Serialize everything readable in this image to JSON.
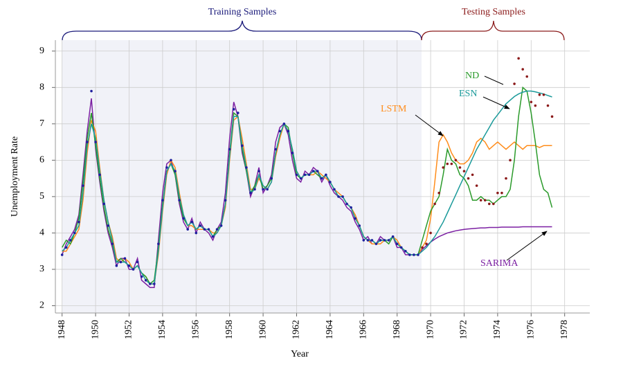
{
  "chart_data": {
    "type": "line",
    "x_label": "Year",
    "y_label": "Unemployment Rate",
    "annotations": [
      "Training Samples",
      "Testing Samples"
    ],
    "xlim": [
      1947.6,
      1979.5
    ],
    "ylim": [
      1.8,
      9.3
    ],
    "xticks": [
      1948,
      1950,
      1952,
      1954,
      1956,
      1958,
      1960,
      1962,
      1964,
      1966,
      1968,
      1970,
      1972,
      1974,
      1976,
      1978
    ],
    "yticks": [
      2,
      3,
      4,
      5,
      6,
      7,
      8,
      9
    ],
    "grid": true,
    "x": [
      1948,
      1948.25,
      1948.5,
      1948.75,
      1949,
      1949.25,
      1949.5,
      1949.75,
      1950,
      1950.25,
      1950.5,
      1950.75,
      1951,
      1951.25,
      1951.5,
      1951.75,
      1952,
      1952.25,
      1952.5,
      1952.75,
      1953,
      1953.25,
      1953.5,
      1953.75,
      1954,
      1954.25,
      1954.5,
      1954.75,
      1955,
      1955.25,
      1955.5,
      1955.75,
      1956,
      1956.25,
      1956.5,
      1956.75,
      1957,
      1957.25,
      1957.5,
      1957.75,
      1958,
      1958.25,
      1958.5,
      1958.75,
      1959,
      1959.25,
      1959.5,
      1959.75,
      1960,
      1960.25,
      1960.5,
      1960.75,
      1961,
      1961.25,
      1961.5,
      1961.75,
      1962,
      1962.25,
      1962.5,
      1962.75,
      1963,
      1963.25,
      1963.5,
      1963.75,
      1964,
      1964.25,
      1964.5,
      1964.75,
      1965,
      1965.25,
      1965.5,
      1965.75,
      1966,
      1966.25,
      1966.5,
      1966.75,
      1967,
      1967.25,
      1967.5,
      1967.75,
      1968,
      1968.25,
      1968.5,
      1968.75,
      1969,
      1969.25,
      1969.5,
      1969.75,
      1970,
      1970.25,
      1970.5,
      1970.75,
      1971,
      1971.25,
      1971.5,
      1971.75,
      1972,
      1972.25,
      1972.5,
      1972.75,
      1973,
      1973.25,
      1973.5,
      1973.75,
      1974,
      1974.25,
      1974.5,
      1974.75,
      1975,
      1975.25,
      1975.5,
      1975.75,
      1976,
      1976.25,
      1976.5,
      1976.75,
      1977,
      1977.25
    ],
    "series": [
      {
        "color": "#1f1f9e",
        "mode": "markers",
        "values": [
          3.4,
          3.6,
          3.8,
          4.0,
          4.3,
          5.3,
          6.5,
          7.9,
          6.5,
          5.6,
          4.8,
          4.2,
          3.7,
          3.1,
          3.2,
          3.3,
          3.1,
          3.0,
          3.2,
          2.8,
          2.7,
          2.6,
          2.6,
          3.7,
          4.9,
          5.8,
          6.0,
          5.7,
          4.9,
          4.4,
          4.1,
          4.3,
          4.0,
          4.2,
          4.1,
          4.1,
          3.9,
          4.1,
          4.2,
          4.9,
          6.3,
          7.4,
          7.3,
          6.4,
          5.8,
          5.1,
          5.2,
          5.7,
          5.2,
          5.2,
          5.5,
          6.3,
          6.8,
          7.0,
          6.8,
          6.2,
          5.6,
          5.5,
          5.6,
          5.6,
          5.7,
          5.7,
          5.5,
          5.6,
          5.4,
          5.2,
          5.0,
          5.0,
          4.8,
          4.7,
          4.4,
          4.2,
          3.8,
          3.8,
          3.8,
          3.7,
          3.8,
          3.8,
          3.8,
          3.9,
          3.7,
          3.6,
          3.5,
          3.4,
          3.4,
          3.4,
          null,
          null,
          null,
          null,
          null,
          null,
          null,
          null,
          null,
          null,
          null,
          null,
          null,
          null,
          null,
          null,
          null,
          null,
          null,
          null,
          null,
          null,
          null,
          null,
          null,
          null,
          null,
          null,
          null,
          null,
          null,
          null
        ]
      },
      {
        "color": "#8b1a1a",
        "mode": "markers",
        "values": [
          null,
          null,
          null,
          null,
          null,
          null,
          null,
          null,
          null,
          null,
          null,
          null,
          null,
          null,
          null,
          null,
          null,
          null,
          null,
          null,
          null,
          null,
          null,
          null,
          null,
          null,
          null,
          null,
          null,
          null,
          null,
          null,
          null,
          null,
          null,
          null,
          null,
          null,
          null,
          null,
          null,
          null,
          null,
          null,
          null,
          null,
          null,
          null,
          null,
          null,
          null,
          null,
          null,
          null,
          null,
          null,
          null,
          null,
          null,
          null,
          null,
          null,
          null,
          null,
          null,
          null,
          null,
          null,
          null,
          null,
          null,
          null,
          null,
          null,
          null,
          null,
          null,
          null,
          null,
          null,
          null,
          null,
          null,
          null,
          null,
          null,
          3.6,
          3.7,
          4.0,
          4.8,
          5.1,
          5.8,
          5.9,
          5.9,
          6.0,
          5.8,
          5.7,
          5.5,
          5.6,
          5.3,
          4.9,
          4.9,
          4.8,
          4.8,
          5.1,
          5.1,
          5.5,
          6.0,
          8.1,
          8.8,
          8.5,
          8.3,
          7.6,
          7.5,
          7.8,
          7.8,
          7.5,
          7.2
        ]
      },
      {
        "name": "SARIMA",
        "color": "#7b1fa2",
        "mode": "lines",
        "values": [
          3.4,
          3.7,
          3.9,
          4.1,
          4.5,
          5.6,
          6.8,
          7.7,
          6.3,
          5.4,
          4.6,
          4.0,
          3.6,
          3.1,
          3.3,
          3.3,
          3.0,
          3.0,
          3.3,
          2.7,
          2.6,
          2.5,
          2.5,
          3.8,
          5.1,
          5.9,
          6.0,
          5.6,
          4.8,
          4.3,
          4.1,
          4.4,
          4.0,
          4.3,
          4.1,
          4.0,
          3.8,
          4.1,
          4.3,
          5.1,
          6.6,
          7.6,
          7.2,
          6.2,
          5.7,
          5.0,
          5.3,
          5.8,
          5.1,
          5.3,
          5.6,
          6.5,
          6.9,
          7.0,
          6.7,
          6.0,
          5.5,
          5.4,
          5.7,
          5.6,
          5.8,
          5.7,
          5.4,
          5.6,
          5.3,
          5.1,
          5.0,
          4.9,
          4.7,
          4.6,
          4.3,
          4.1,
          3.8,
          3.9,
          3.7,
          3.7,
          3.9,
          3.8,
          3.8,
          3.9,
          3.6,
          3.6,
          3.4,
          3.4,
          3.4,
          3.4,
          3.55,
          3.65,
          3.75,
          3.83,
          3.9,
          3.95,
          4.0,
          4.03,
          4.06,
          4.08,
          4.1,
          4.11,
          4.12,
          4.13,
          4.14,
          4.14,
          4.15,
          4.15,
          4.15,
          4.16,
          4.16,
          4.16,
          4.16,
          4.16,
          4.17,
          4.17,
          4.17,
          4.17,
          4.17,
          4.17,
          4.17,
          4.17
        ]
      },
      {
        "name": "LSTM",
        "color": "#ff8c1a",
        "mode": "lines",
        "values": [
          3.5,
          3.5,
          3.7,
          3.9,
          4.1,
          4.9,
          6.2,
          7.1,
          6.8,
          5.8,
          4.9,
          4.3,
          3.9,
          3.3,
          3.2,
          3.3,
          3.2,
          3.0,
          3.1,
          2.9,
          2.8,
          2.6,
          2.6,
          3.4,
          4.6,
          5.6,
          6.0,
          5.8,
          5.1,
          4.5,
          4.2,
          4.2,
          4.1,
          4.1,
          4.1,
          4.1,
          4.0,
          4.0,
          4.2,
          4.7,
          6.0,
          7.1,
          7.2,
          6.6,
          5.9,
          5.2,
          5.2,
          5.5,
          5.3,
          5.2,
          5.4,
          6.1,
          6.6,
          7.0,
          6.8,
          6.3,
          5.7,
          5.5,
          5.6,
          5.6,
          5.6,
          5.7,
          5.6,
          5.5,
          5.4,
          5.2,
          5.1,
          5.0,
          4.8,
          4.7,
          4.5,
          4.2,
          3.9,
          3.8,
          3.7,
          3.7,
          3.7,
          3.8,
          3.8,
          3.9,
          3.8,
          3.6,
          3.5,
          3.4,
          3.4,
          3.4,
          3.6,
          3.8,
          4.4,
          5.4,
          6.5,
          6.7,
          6.5,
          6.2,
          6.0,
          5.9,
          5.9,
          6.0,
          6.2,
          6.5,
          6.6,
          6.5,
          6.3,
          6.4,
          6.5,
          6.4,
          6.3,
          6.4,
          6.5,
          6.4,
          6.3,
          6.4,
          6.4,
          6.4,
          6.35,
          6.4,
          6.4,
          6.4
        ]
      },
      {
        "name": "ND",
        "color": "#2a9a2a",
        "mode": "lines",
        "values": [
          3.6,
          3.8,
          3.7,
          4.0,
          4.4,
          5.4,
          6.6,
          7.3,
          6.4,
          5.5,
          4.7,
          4.1,
          3.7,
          3.2,
          3.3,
          3.2,
          3.1,
          3.0,
          3.1,
          2.9,
          2.8,
          2.6,
          2.7,
          3.6,
          4.8,
          5.7,
          5.9,
          5.6,
          4.9,
          4.4,
          4.2,
          4.3,
          4.1,
          4.2,
          4.1,
          4.1,
          3.9,
          4.1,
          4.2,
          4.8,
          6.2,
          7.3,
          7.2,
          6.3,
          5.7,
          5.1,
          5.3,
          5.6,
          5.2,
          5.3,
          5.5,
          6.2,
          6.7,
          7.0,
          6.9,
          6.2,
          5.6,
          5.5,
          5.6,
          5.6,
          5.7,
          5.6,
          5.5,
          5.6,
          5.4,
          5.2,
          5.0,
          5.0,
          4.8,
          4.7,
          4.4,
          4.2,
          3.9,
          3.8,
          3.8,
          3.7,
          3.8,
          3.8,
          3.7,
          3.9,
          3.7,
          3.6,
          3.5,
          3.4,
          3.4,
          3.4,
          3.8,
          4.2,
          4.6,
          4.8,
          5.0,
          5.6,
          6.3,
          6.0,
          5.9,
          5.6,
          5.5,
          5.3,
          4.9,
          4.9,
          5.0,
          4.9,
          4.9,
          4.8,
          4.9,
          5.0,
          5.0,
          5.2,
          6.0,
          7.2,
          8.0,
          7.9,
          7.3,
          6.5,
          5.6,
          5.2,
          5.1,
          4.7
        ]
      },
      {
        "name": "ESN",
        "color": "#1a9a9a",
        "mode": "lines",
        "values": [
          3.5,
          3.6,
          3.8,
          4.0,
          4.2,
          5.1,
          6.4,
          7.0,
          6.6,
          5.7,
          4.9,
          4.3,
          3.8,
          3.2,
          3.2,
          3.2,
          3.1,
          3.0,
          3.1,
          2.9,
          2.7,
          2.6,
          2.6,
          3.5,
          4.7,
          5.7,
          5.9,
          5.7,
          5.0,
          4.5,
          4.2,
          4.3,
          4.1,
          4.2,
          4.1,
          4.1,
          3.9,
          4.0,
          4.2,
          4.8,
          6.1,
          7.2,
          7.2,
          6.4,
          5.8,
          5.1,
          5.2,
          5.6,
          5.3,
          5.2,
          5.4,
          6.2,
          6.7,
          7.0,
          6.8,
          6.3,
          5.7,
          5.5,
          5.6,
          5.6,
          5.7,
          5.7,
          5.5,
          5.6,
          5.4,
          5.2,
          5.0,
          5.0,
          4.8,
          4.7,
          4.4,
          4.2,
          3.9,
          3.8,
          3.8,
          3.7,
          3.8,
          3.8,
          3.8,
          3.9,
          3.7,
          3.6,
          3.5,
          3.4,
          3.4,
          3.4,
          3.5,
          3.6,
          3.75,
          3.9,
          4.1,
          4.3,
          4.55,
          4.8,
          5.05,
          5.3,
          5.55,
          5.8,
          6.05,
          6.3,
          6.5,
          6.7,
          6.9,
          7.1,
          7.25,
          7.4,
          7.55,
          7.65,
          7.75,
          7.82,
          7.87,
          7.9,
          7.9,
          7.88,
          7.85,
          7.82,
          7.78,
          7.74
        ]
      }
    ]
  }
}
